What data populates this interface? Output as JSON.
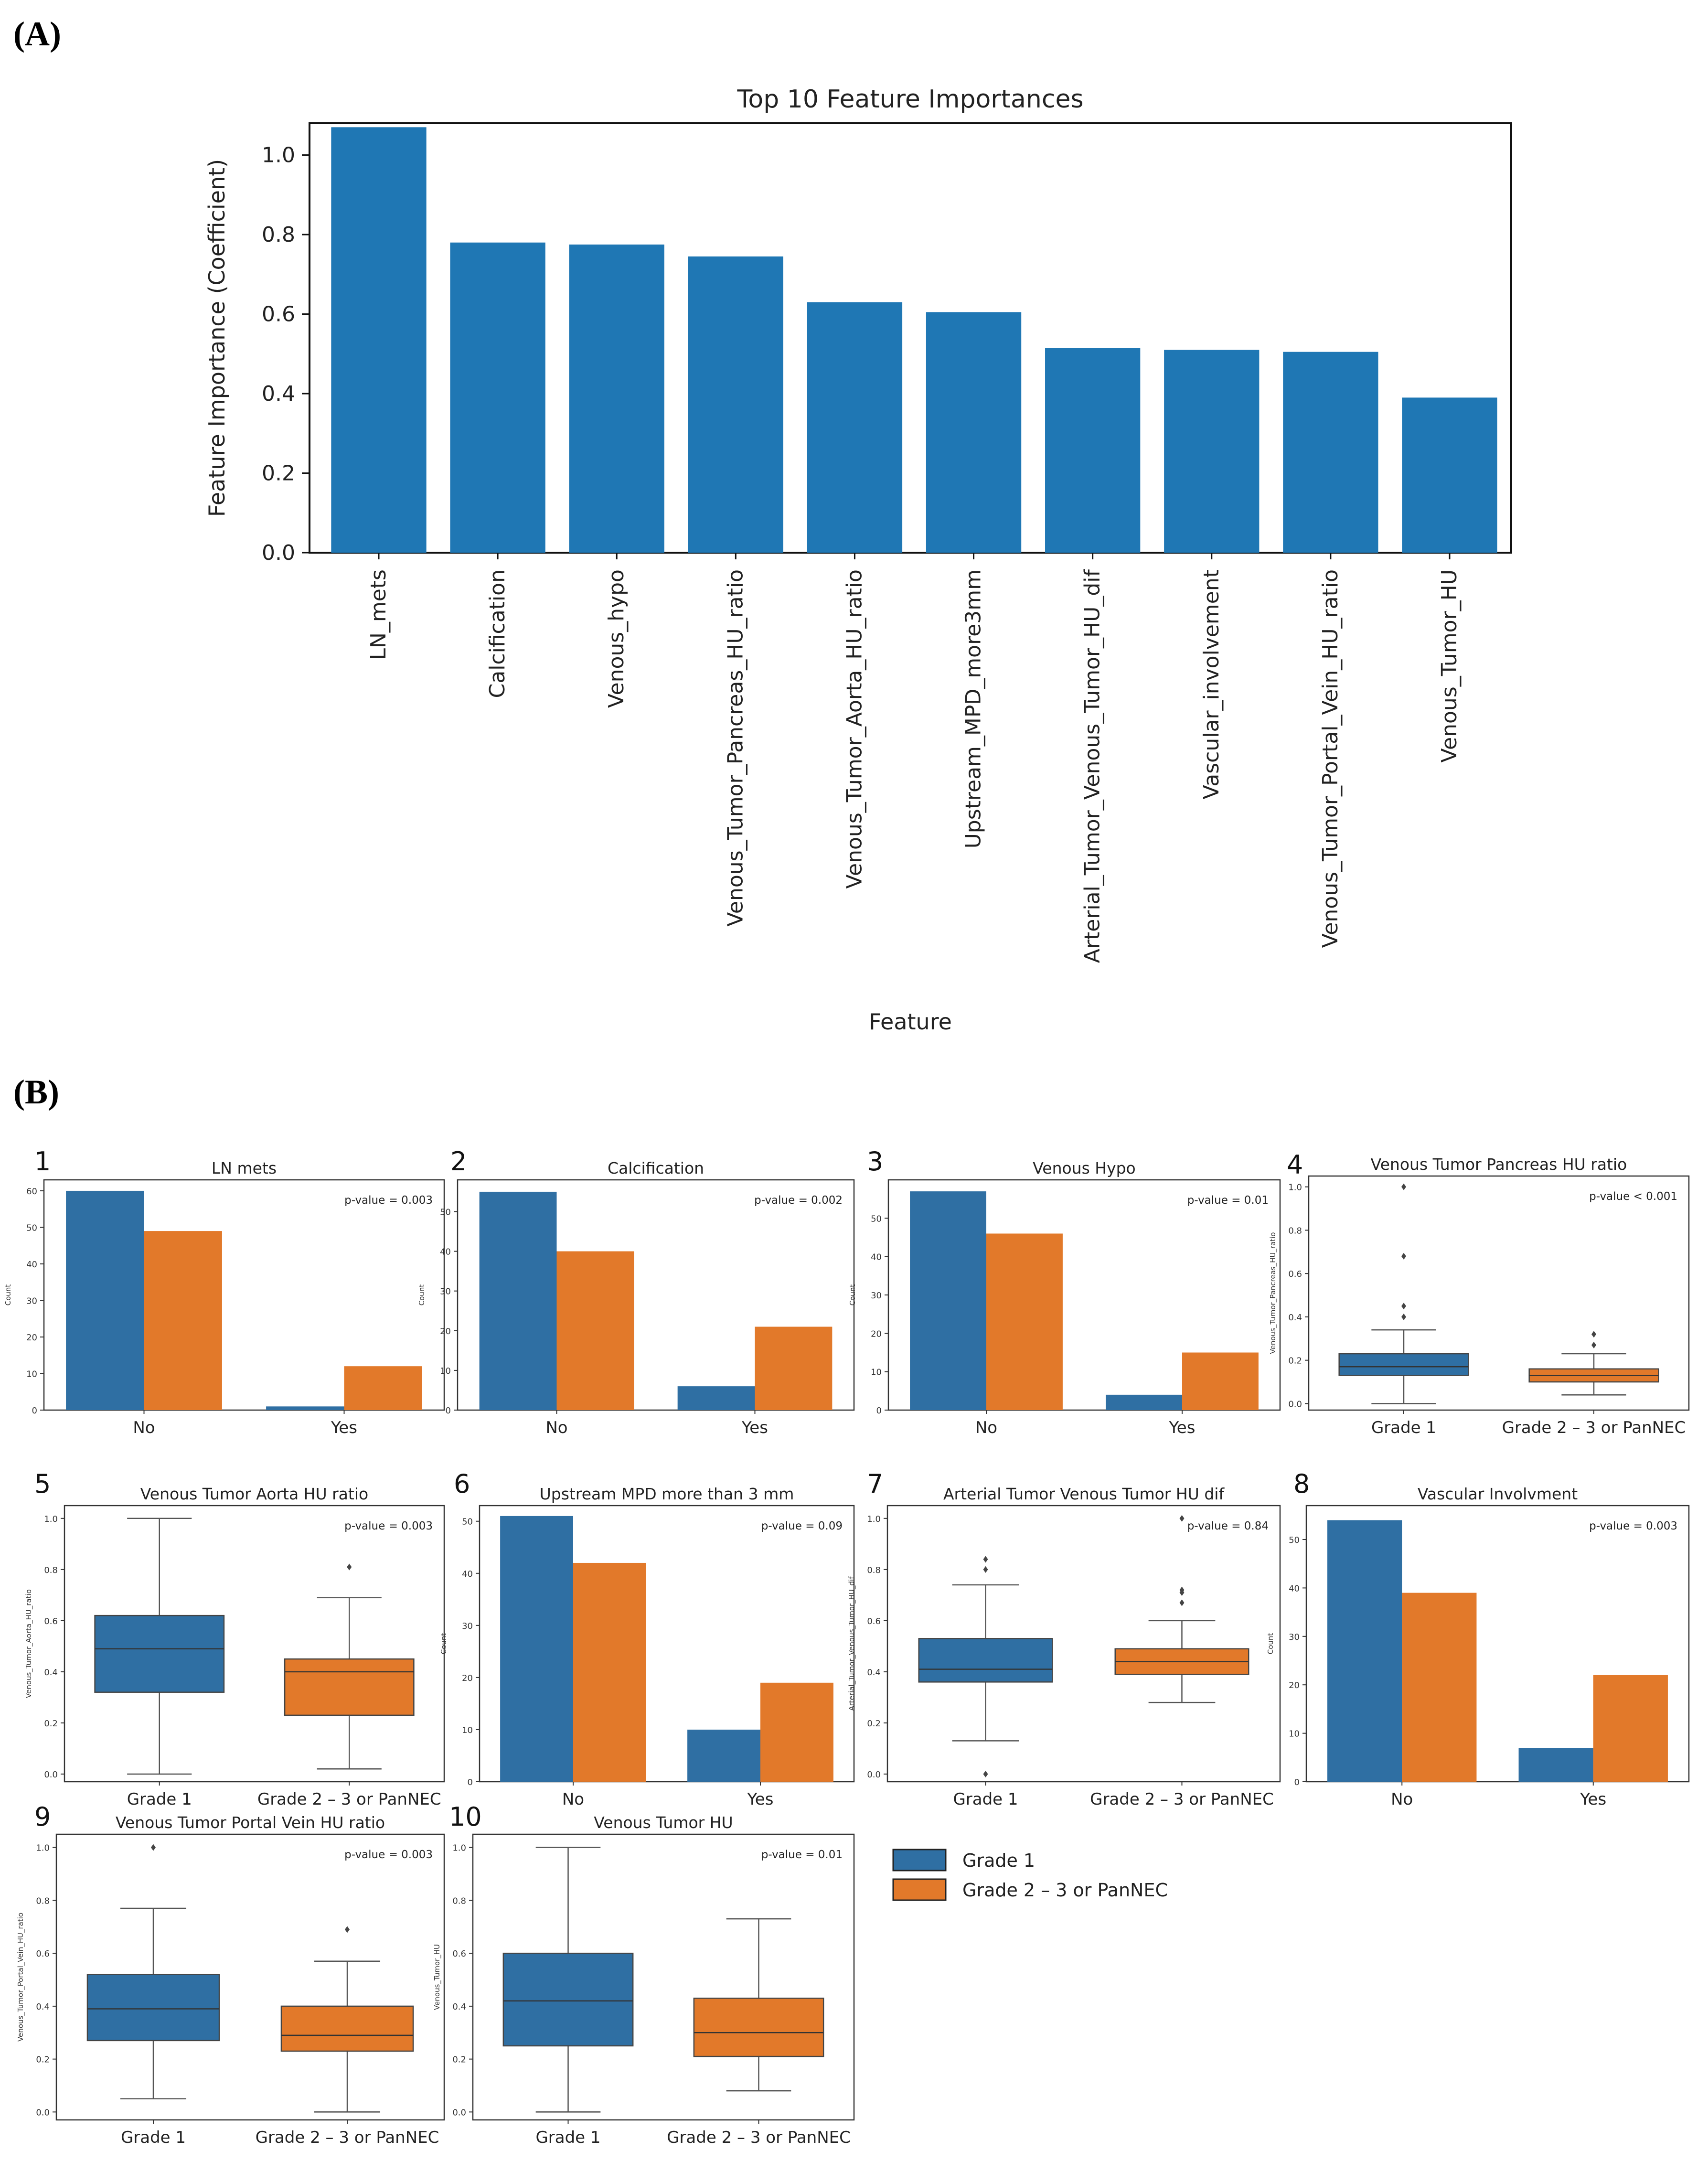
{
  "panel_labels": {
    "a": "(A)",
    "b": "(B)"
  },
  "colors": {
    "blue": "#2f6fa3",
    "orange": "#e2792a",
    "mainbar": "#1f77b4",
    "legend_blue": "#2f6fa3",
    "legend_orange": "#e2792a"
  },
  "legend": {
    "items": [
      "Grade 1",
      "Grade 2 – 3 or PanNEC"
    ]
  },
  "chart_data": [
    {
      "type": "bar",
      "title": "Top 10 Feature Importances",
      "xlabel": "Feature",
      "ylabel": "Feature Importance (Coefficient)",
      "ylim": [
        0,
        1.08
      ],
      "yticks": [
        "0.0",
        "0.2",
        "0.4",
        "0.6",
        "0.8",
        "1.0"
      ],
      "categories": [
        "LN_mets",
        "Calcification",
        "Venous_hypo",
        "Venous_Tumor_Pancreas_HU_ratio",
        "Venous_Tumor_Aorta_HU_ratio",
        "Upstream_MPD_more3mm",
        "Arterial_Tumor_Venous_Tumor_HU_dif",
        "Vascular_involvement",
        "Venous_Tumor_Portal_Vein_HU_ratio",
        "Venous_Tumor_HU"
      ],
      "values": [
        1.07,
        0.78,
        0.775,
        0.745,
        0.63,
        0.605,
        0.515,
        0.51,
        0.505,
        0.39
      ]
    },
    {
      "type": "bar",
      "num": "1",
      "title": "LN mets",
      "pvalue": "p-value = 0.003",
      "ylabel": "Count",
      "ylim": [
        0,
        63
      ],
      "yticks": [
        "0",
        "10",
        "20",
        "30",
        "40",
        "50",
        "60"
      ],
      "categories": [
        "No",
        "Yes"
      ],
      "series": [
        {
          "name": "Grade 1",
          "values": [
            60,
            1
          ]
        },
        {
          "name": "Grade 2 – 3 or PanNEC",
          "values": [
            49,
            12
          ]
        }
      ]
    },
    {
      "type": "bar",
      "num": "2",
      "title": "Calcification",
      "pvalue": "p-value = 0.002",
      "ylabel": "Count",
      "ylim": [
        0,
        58
      ],
      "yticks": [
        "0",
        "10",
        "20",
        "30",
        "40",
        "50"
      ],
      "categories": [
        "No",
        "Yes"
      ],
      "series": [
        {
          "name": "Grade 1",
          "values": [
            55,
            6
          ]
        },
        {
          "name": "Grade 2 – 3 or PanNEC",
          "values": [
            40,
            21
          ]
        }
      ]
    },
    {
      "type": "bar",
      "num": "3",
      "title": "Venous Hypo",
      "pvalue": "p-value = 0.01",
      "ylabel": "Count",
      "ylim": [
        0,
        60
      ],
      "yticks": [
        "0",
        "10",
        "20",
        "30",
        "40",
        "50"
      ],
      "categories": [
        "No",
        "Yes"
      ],
      "series": [
        {
          "name": "Grade 1",
          "values": [
            57,
            4
          ]
        },
        {
          "name": "Grade 2 – 3 or PanNEC",
          "values": [
            46,
            15
          ]
        }
      ]
    },
    {
      "type": "box",
      "num": "4",
      "title": "Venous Tumor Pancreas HU ratio",
      "pvalue": "p-value < 0.001",
      "ylabel": "Venous_Tumor_Pancreas_HU_ratio",
      "ylim": [
        -0.03,
        1.05
      ],
      "yticks": [
        "0.0",
        "0.2",
        "0.4",
        "0.6",
        "0.8",
        "1.0"
      ],
      "categories": [
        "Grade 1",
        "Grade 2 – 3 or PanNEC"
      ],
      "boxes": [
        {
          "min": 0.0,
          "q1": 0.13,
          "median": 0.17,
          "q3": 0.23,
          "max": 0.34,
          "outliers": [
            0.4,
            0.45,
            0.68,
            1.0
          ]
        },
        {
          "min": 0.04,
          "q1": 0.1,
          "median": 0.13,
          "q3": 0.16,
          "max": 0.23,
          "outliers": [
            0.27,
            0.32
          ]
        }
      ]
    },
    {
      "type": "box",
      "num": "5",
      "title": "Venous Tumor Aorta HU ratio",
      "pvalue": "p-value = 0.003",
      "ylabel": "Venous_Tumor_Aorta_HU_ratio",
      "ylim": [
        -0.03,
        1.05
      ],
      "yticks": [
        "0.0",
        "0.2",
        "0.4",
        "0.6",
        "0.8",
        "1.0"
      ],
      "categories": [
        "Grade 1",
        "Grade 2 – 3 or PanNEC"
      ],
      "boxes": [
        {
          "min": 0.0,
          "q1": 0.32,
          "median": 0.49,
          "q3": 0.62,
          "max": 1.0,
          "outliers": []
        },
        {
          "min": 0.02,
          "q1": 0.23,
          "median": 0.4,
          "q3": 0.45,
          "max": 0.69,
          "outliers": [
            0.81
          ]
        }
      ]
    },
    {
      "type": "bar",
      "num": "6",
      "title": "Upstream MPD more than 3 mm",
      "pvalue": "p-value = 0.09",
      "ylabel": "Count",
      "ylim": [
        0,
        53
      ],
      "yticks": [
        "0",
        "10",
        "20",
        "30",
        "40",
        "50"
      ],
      "categories": [
        "No",
        "Yes"
      ],
      "series": [
        {
          "name": "Grade 1",
          "values": [
            51,
            10
          ]
        },
        {
          "name": "Grade 2 – 3 or PanNEC",
          "values": [
            42,
            19
          ]
        }
      ]
    },
    {
      "type": "box",
      "num": "7",
      "title": "Arterial Tumor Venous Tumor HU dif",
      "pvalue": "p-value = 0.84",
      "ylabel": "Arterial_Tumor_Venous_Tumor_HU_dif",
      "ylim": [
        -0.03,
        1.05
      ],
      "yticks": [
        "0.0",
        "0.2",
        "0.4",
        "0.6",
        "0.8",
        "1.0"
      ],
      "categories": [
        "Grade 1",
        "Grade 2 – 3 or PanNEC"
      ],
      "boxes": [
        {
          "min": 0.13,
          "q1": 0.36,
          "median": 0.41,
          "q3": 0.53,
          "max": 0.74,
          "outliers": [
            0.0,
            0.8,
            0.84
          ]
        },
        {
          "min": 0.28,
          "q1": 0.39,
          "median": 0.44,
          "q3": 0.49,
          "max": 0.6,
          "outliers": [
            0.67,
            0.71,
            0.72,
            1.0
          ]
        }
      ]
    },
    {
      "type": "bar",
      "num": "8",
      "title": "Vascular Involvment",
      "pvalue": "p-value = 0.003",
      "ylabel": "Count",
      "ylim": [
        0,
        57
      ],
      "yticks": [
        "0",
        "10",
        "20",
        "30",
        "40",
        "50"
      ],
      "categories": [
        "No",
        "Yes"
      ],
      "series": [
        {
          "name": "Grade 1",
          "values": [
            54,
            7
          ]
        },
        {
          "name": "Grade 2 – 3 or PanNEC",
          "values": [
            39,
            22
          ]
        }
      ]
    },
    {
      "type": "box",
      "num": "9",
      "title": "Venous Tumor Portal Vein HU ratio",
      "pvalue": "p-value = 0.003",
      "ylabel": "Venous_Tumor_Portal_Vein_HU_ratio",
      "ylim": [
        -0.03,
        1.05
      ],
      "yticks": [
        "0.0",
        "0.2",
        "0.4",
        "0.6",
        "0.8",
        "1.0"
      ],
      "categories": [
        "Grade 1",
        "Grade 2 – 3 or PanNEC"
      ],
      "boxes": [
        {
          "min": 0.05,
          "q1": 0.27,
          "median": 0.39,
          "q3": 0.52,
          "max": 0.77,
          "outliers": [
            1.0
          ]
        },
        {
          "min": 0.0,
          "q1": 0.23,
          "median": 0.29,
          "q3": 0.4,
          "max": 0.57,
          "outliers": [
            0.69
          ]
        }
      ]
    },
    {
      "type": "box",
      "num": "10",
      "title": "Venous Tumor HU",
      "pvalue": "p-value = 0.01",
      "ylabel": "Venous_Tumor_HU",
      "ylim": [
        -0.03,
        1.05
      ],
      "yticks": [
        "0.0",
        "0.2",
        "0.4",
        "0.6",
        "0.8",
        "1.0"
      ],
      "categories": [
        "Grade 1",
        "Grade 2 – 3 or PanNEC"
      ],
      "boxes": [
        {
          "min": 0.0,
          "q1": 0.25,
          "median": 0.42,
          "q3": 0.6,
          "max": 1.0,
          "outliers": []
        },
        {
          "min": 0.08,
          "q1": 0.21,
          "median": 0.3,
          "q3": 0.43,
          "max": 0.73,
          "outliers": []
        }
      ]
    }
  ]
}
